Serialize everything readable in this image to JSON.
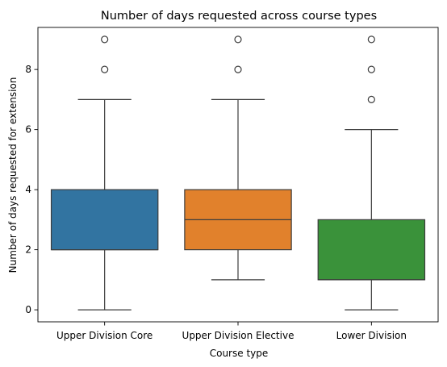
{
  "chart_data": {
    "type": "box",
    "title": "Number of days requested across course types",
    "xlabel": "Course type",
    "ylabel": "Number of days requested for extension",
    "ylim": [
      -0.4,
      9.4
    ],
    "yticks": [
      0,
      2,
      4,
      6,
      8
    ],
    "grid": false,
    "legend": "none",
    "categories": [
      "Upper Division Core",
      "Upper Division Elective",
      "Lower Division"
    ],
    "boxes": [
      {
        "category": "Upper Division Core",
        "color": "#3274a1",
        "whisker_low": 0,
        "q1": 2,
        "median": 2,
        "q3": 4,
        "whisker_high": 7,
        "outliers": [
          8,
          9
        ]
      },
      {
        "category": "Upper Division Elective",
        "color": "#e1812c",
        "whisker_low": 1,
        "q1": 2,
        "median": 3,
        "q3": 4,
        "whisker_high": 7,
        "outliers": [
          8,
          9
        ]
      },
      {
        "category": "Lower Division",
        "color": "#3a923a",
        "whisker_low": 0,
        "q1": 1,
        "median": 1,
        "q3": 3,
        "whisker_high": 6,
        "outliers": [
          7,
          8,
          9
        ]
      }
    ]
  }
}
